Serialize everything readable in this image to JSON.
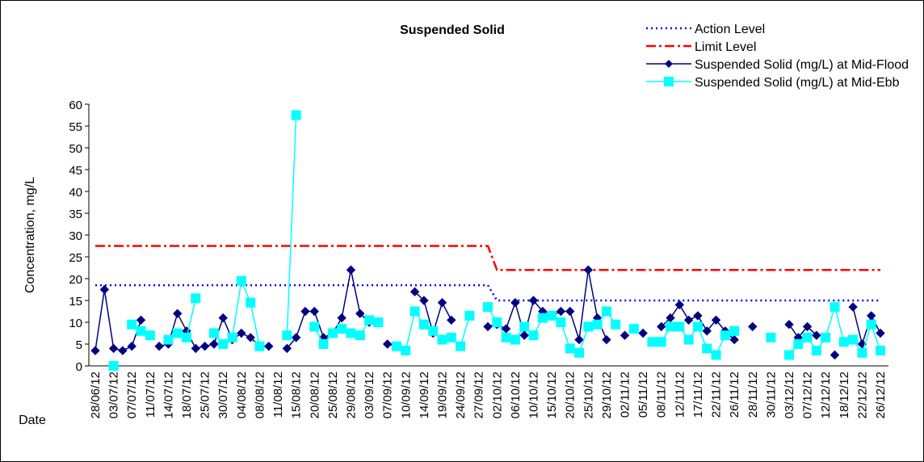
{
  "chart_data": {
    "type": "line",
    "title": "Suspended Solid",
    "ylabel": "Concentration, mg/L",
    "xlabel": "Date",
    "categories": [
      "28/06/12",
      null,
      "03/07/12",
      null,
      "07/07/12",
      null,
      "11/07/12",
      null,
      "14/07/12",
      null,
      "18/07/12",
      null,
      "25/07/12",
      null,
      "30/07/12",
      null,
      "04/08/12",
      null,
      "08/08/12",
      null,
      "11/08/12",
      null,
      "15/08/12",
      null,
      "20/08/12",
      null,
      "25/08/12",
      null,
      "29/08/12",
      null,
      "03/09/12",
      null,
      "07/09/12",
      null,
      "10/09/12",
      null,
      "14/09/12",
      null,
      "19/09/12",
      null,
      "24/09/12",
      null,
      "27/09/12",
      null,
      "02/10/12",
      null,
      "06/10/12",
      null,
      "10/10/12",
      null,
      "15/10/12",
      null,
      "20/10/12",
      null,
      "25/10/12",
      null,
      "29/10/12",
      null,
      "02/11/12",
      null,
      "05/11/12",
      null,
      "08/11/12",
      null,
      "12/11/12",
      null,
      "17/11/12",
      null,
      "22/11/12",
      null,
      "26/11/12",
      null,
      "28/11/12",
      null,
      "30/11/12",
      null,
      "03/12/12",
      null,
      "07/12/12",
      null,
      "12/12/12",
      null,
      "18/12/12",
      null,
      "22/12/12",
      null,
      "26/12/12"
    ],
    "series": [
      {
        "name": "Action Level",
        "color": "#0000ff",
        "dash": "dotted",
        "marker": null,
        "values": [
          18.5,
          18.5,
          18.5,
          18.5,
          18.5,
          18.5,
          18.5,
          18.5,
          18.5,
          18.5,
          18.5,
          18.5,
          18.5,
          18.5,
          18.5,
          18.5,
          18.5,
          18.5,
          18.5,
          18.5,
          18.5,
          18.5,
          18.5,
          18.5,
          18.5,
          18.5,
          18.5,
          18.5,
          18.5,
          18.5,
          18.5,
          18.5,
          18.5,
          18.5,
          18.5,
          18.5,
          18.5,
          18.5,
          18.5,
          18.5,
          18.5,
          18.5,
          18.5,
          18.5,
          15,
          15,
          15,
          15,
          15,
          15,
          15,
          15,
          15,
          15,
          15,
          15,
          15,
          15,
          15,
          15,
          15,
          15,
          15,
          15,
          15,
          15,
          15,
          15,
          15,
          15,
          15,
          15,
          15,
          15,
          15,
          15,
          15,
          15,
          15,
          15,
          15,
          15,
          15,
          15,
          15,
          15,
          15
        ]
      },
      {
        "name": "Limit Level",
        "color": "#ff0000",
        "dash": "dashdot",
        "marker": null,
        "values": [
          27.5,
          27.5,
          27.5,
          27.5,
          27.5,
          27.5,
          27.5,
          27.5,
          27.5,
          27.5,
          27.5,
          27.5,
          27.5,
          27.5,
          27.5,
          27.5,
          27.5,
          27.5,
          27.5,
          27.5,
          27.5,
          27.5,
          27.5,
          27.5,
          27.5,
          27.5,
          27.5,
          27.5,
          27.5,
          27.5,
          27.5,
          27.5,
          27.5,
          27.5,
          27.5,
          27.5,
          27.5,
          27.5,
          27.5,
          27.5,
          27.5,
          27.5,
          27.5,
          27.5,
          22,
          22,
          22,
          22,
          22,
          22,
          22,
          22,
          22,
          22,
          22,
          22,
          22,
          22,
          22,
          22,
          22,
          22,
          22,
          22,
          22,
          22,
          22,
          22,
          22,
          22,
          22,
          22,
          22,
          22,
          22,
          22,
          22,
          22,
          22,
          22,
          22,
          22,
          22,
          22,
          22,
          22,
          22
        ]
      },
      {
        "name": "Suspended Solid (mg/L) at Mid-Flood",
        "color": "#000080",
        "dash": "solid",
        "marker": "diamond",
        "values": [
          3.5,
          17.5,
          4,
          3.5,
          4.5,
          10.5,
          null,
          4.5,
          5,
          12,
          8,
          4,
          4.5,
          5,
          11,
          6,
          7.5,
          6.5,
          4.5,
          4.5,
          null,
          4,
          6.5,
          12.5,
          12.5,
          6.5,
          7.5,
          11,
          22,
          12,
          10,
          null,
          5,
          4.5,
          null,
          17,
          15,
          7.5,
          14.5,
          10.5,
          null,
          null,
          null,
          9,
          9.5,
          8.5,
          14.5,
          7,
          15,
          12.5,
          11.5,
          12.5,
          12.5,
          6,
          22,
          11,
          6,
          null,
          7,
          null,
          7.5,
          null,
          9,
          11,
          14,
          10.5,
          11.5,
          8,
          10.5,
          8,
          6,
          null,
          9,
          null,
          6.5,
          null,
          9.5,
          6.5,
          9,
          7,
          null,
          2.5,
          null,
          13.5,
          5,
          11.5,
          7.5
        ]
      },
      {
        "name": "Suspended Solid (mg/L) at Mid-Ebb",
        "color": "#00ffff",
        "dash": "solid",
        "marker": "square",
        "values": [
          null,
          null,
          0,
          null,
          9.5,
          8,
          7,
          null,
          6,
          7.5,
          6.5,
          15.5,
          null,
          7.5,
          5,
          6.5,
          19.5,
          14.5,
          4.5,
          null,
          null,
          7,
          57.5,
          null,
          9,
          5,
          7.5,
          8.5,
          7.5,
          7,
          10.5,
          10,
          null,
          4.5,
          3.5,
          12.5,
          9.5,
          8,
          6,
          6.5,
          4.5,
          11.5,
          null,
          13.5,
          10,
          6.5,
          6,
          9,
          7,
          11,
          11.5,
          10,
          4,
          3,
          9,
          9.5,
          12.5,
          9.5,
          null,
          8.5,
          null,
          5.5,
          5.5,
          9,
          9,
          6,
          9,
          4,
          2.5,
          7,
          8,
          null,
          null,
          null,
          6.5,
          null,
          2.5,
          5,
          6.5,
          3.5,
          6.5,
          13.5,
          5.5,
          6,
          3,
          9.5,
          3.5
        ]
      }
    ],
    "ylim": [
      0,
      60
    ],
    "yticks": [
      0,
      5,
      10,
      15,
      20,
      25,
      30,
      35,
      40,
      45,
      50,
      55,
      60
    ],
    "grid": false,
    "legend": "top-right"
  }
}
